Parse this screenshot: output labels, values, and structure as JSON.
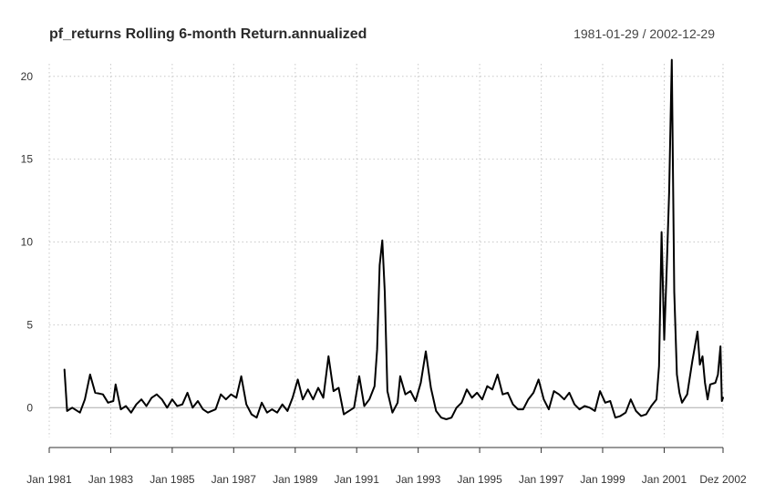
{
  "chart_data": {
    "type": "line",
    "title": "pf_returns Rolling 6-month Return.annualized",
    "date_range_label": "1981-01-29 / 2002-12-29",
    "xlabel": "",
    "ylabel": "",
    "x_range": [
      "1981-01-29",
      "2002-12-29"
    ],
    "ylim": [
      -1.8,
      21.2
    ],
    "y_ticks": [
      0,
      5,
      10,
      15,
      20
    ],
    "y_tick_labels": [
      "0",
      "5",
      "10",
      "15",
      "20"
    ],
    "x_ticks": [
      {
        "date": "1981-01-29",
        "label": "Jan 1981"
      },
      {
        "date": "1983-01-29",
        "label": "Jan 1983"
      },
      {
        "date": "1985-01-29",
        "label": "Jan 1985"
      },
      {
        "date": "1987-01-29",
        "label": "Jan 1987"
      },
      {
        "date": "1989-01-29",
        "label": "Jan 1989"
      },
      {
        "date": "1991-01-29",
        "label": "Jan 1991"
      },
      {
        "date": "1993-01-29",
        "label": "Jan 1993"
      },
      {
        "date": "1995-01-29",
        "label": "Jan 1995"
      },
      {
        "date": "1997-01-29",
        "label": "Jan 1997"
      },
      {
        "date": "1999-01-29",
        "label": "Jan 1999"
      },
      {
        "date": "2001-01-29",
        "label": "Jan 2001"
      },
      {
        "date": "2002-12-29",
        "label": "Dez 2002"
      }
    ],
    "grid": true,
    "colors": {
      "line": "#000000",
      "zero_line": "#aaaaaa",
      "grid": "#c8c8c8",
      "axis": "#333333"
    },
    "series": [
      {
        "values": [
          [
            "1981-07-29",
            2.3
          ],
          [
            "1981-08-29",
            -0.2
          ],
          [
            "1981-10-29",
            0.0
          ],
          [
            "1982-01-29",
            -0.3
          ],
          [
            "1982-03-29",
            0.5
          ],
          [
            "1982-05-29",
            2.0
          ],
          [
            "1982-07-29",
            0.9
          ],
          [
            "1982-10-29",
            0.8
          ],
          [
            "1982-12-29",
            0.3
          ],
          [
            "1983-02-29",
            0.4
          ],
          [
            "1983-03-29",
            1.4
          ],
          [
            "1983-05-29",
            -0.1
          ],
          [
            "1983-07-29",
            0.1
          ],
          [
            "1983-09-29",
            -0.3
          ],
          [
            "1983-11-29",
            0.2
          ],
          [
            "1984-01-29",
            0.5
          ],
          [
            "1984-03-29",
            0.1
          ],
          [
            "1984-05-29",
            0.6
          ],
          [
            "1984-07-29",
            0.8
          ],
          [
            "1984-09-29",
            0.5
          ],
          [
            "1984-11-29",
            0.0
          ],
          [
            "1985-01-29",
            0.5
          ],
          [
            "1985-03-29",
            0.1
          ],
          [
            "1985-05-29",
            0.2
          ],
          [
            "1985-07-29",
            0.9
          ],
          [
            "1985-09-29",
            0.0
          ],
          [
            "1985-11-29",
            0.4
          ],
          [
            "1986-01-29",
            -0.1
          ],
          [
            "1986-03-29",
            -0.3
          ],
          [
            "1986-06-29",
            -0.1
          ],
          [
            "1986-08-29",
            0.8
          ],
          [
            "1986-10-29",
            0.5
          ],
          [
            "1986-12-29",
            0.8
          ],
          [
            "1987-02-29",
            0.6
          ],
          [
            "1987-04-29",
            1.9
          ],
          [
            "1987-06-29",
            0.2
          ],
          [
            "1987-08-29",
            -0.4
          ],
          [
            "1987-10-29",
            -0.6
          ],
          [
            "1987-12-29",
            0.3
          ],
          [
            "1988-02-29",
            -0.3
          ],
          [
            "1988-04-29",
            -0.1
          ],
          [
            "1988-06-29",
            -0.3
          ],
          [
            "1988-08-29",
            0.2
          ],
          [
            "1988-10-29",
            -0.2
          ],
          [
            "1988-12-29",
            0.6
          ],
          [
            "1989-02-29",
            1.7
          ],
          [
            "1989-04-29",
            0.5
          ],
          [
            "1989-06-29",
            1.1
          ],
          [
            "1989-08-29",
            0.5
          ],
          [
            "1989-10-29",
            1.2
          ],
          [
            "1989-12-29",
            0.6
          ],
          [
            "1990-02-29",
            3.1
          ],
          [
            "1990-04-29",
            1.0
          ],
          [
            "1990-06-29",
            1.2
          ],
          [
            "1990-08-29",
            -0.4
          ],
          [
            "1990-10-29",
            -0.2
          ],
          [
            "1990-12-29",
            0.0
          ],
          [
            "1991-02-29",
            1.9
          ],
          [
            "1991-04-29",
            0.1
          ],
          [
            "1991-06-29",
            0.5
          ],
          [
            "1991-08-29",
            1.3
          ],
          [
            "1991-09-29",
            3.5
          ],
          [
            "1991-10-29",
            8.6
          ],
          [
            "1991-11-29",
            10.1
          ],
          [
            "1991-12-29",
            7.0
          ],
          [
            "1992-01-29",
            1.0
          ],
          [
            "1992-03-29",
            -0.3
          ],
          [
            "1992-05-29",
            0.3
          ],
          [
            "1992-06-29",
            1.9
          ],
          [
            "1992-08-29",
            0.8
          ],
          [
            "1992-10-29",
            1.0
          ],
          [
            "1992-12-29",
            0.4
          ],
          [
            "1993-02-29",
            1.5
          ],
          [
            "1993-04-29",
            3.4
          ],
          [
            "1993-06-29",
            1.2
          ],
          [
            "1993-08-29",
            -0.2
          ],
          [
            "1993-10-29",
            -0.6
          ],
          [
            "1993-12-29",
            -0.7
          ],
          [
            "1994-02-29",
            -0.6
          ],
          [
            "1994-04-29",
            0.0
          ],
          [
            "1994-06-29",
            0.3
          ],
          [
            "1994-08-29",
            1.1
          ],
          [
            "1994-10-29",
            0.6
          ],
          [
            "1994-12-29",
            0.9
          ],
          [
            "1995-02-29",
            0.5
          ],
          [
            "1995-04-29",
            1.3
          ],
          [
            "1995-06-29",
            1.1
          ],
          [
            "1995-08-29",
            2.0
          ],
          [
            "1995-10-29",
            0.8
          ],
          [
            "1995-12-29",
            0.9
          ],
          [
            "1996-02-29",
            0.2
          ],
          [
            "1996-04-29",
            -0.1
          ],
          [
            "1996-06-29",
            -0.1
          ],
          [
            "1996-08-29",
            0.5
          ],
          [
            "1996-10-29",
            0.9
          ],
          [
            "1996-12-29",
            1.7
          ],
          [
            "1997-02-29",
            0.5
          ],
          [
            "1997-04-29",
            -0.1
          ],
          [
            "1997-06-29",
            1.0
          ],
          [
            "1997-08-29",
            0.8
          ],
          [
            "1997-10-29",
            0.5
          ],
          [
            "1997-12-29",
            0.9
          ],
          [
            "1998-02-29",
            0.2
          ],
          [
            "1998-04-29",
            -0.1
          ],
          [
            "1998-06-29",
            0.1
          ],
          [
            "1998-08-29",
            0.0
          ],
          [
            "1998-10-29",
            -0.2
          ],
          [
            "1998-12-29",
            1.0
          ],
          [
            "1999-02-29",
            0.3
          ],
          [
            "1999-04-29",
            0.4
          ],
          [
            "1999-06-29",
            -0.6
          ],
          [
            "1999-08-29",
            -0.5
          ],
          [
            "1999-10-29",
            -0.3
          ],
          [
            "1999-12-29",
            0.5
          ],
          [
            "2000-02-29",
            -0.2
          ],
          [
            "2000-04-29",
            -0.5
          ],
          [
            "2000-06-29",
            -0.4
          ],
          [
            "2000-08-29",
            0.1
          ],
          [
            "2000-10-29",
            0.5
          ],
          [
            "2000-11-29",
            2.5
          ],
          [
            "2000-12-29",
            10.6
          ],
          [
            "2001-01-29",
            4.1
          ],
          [
            "2001-02-29",
            8.5
          ],
          [
            "2001-03-29",
            13.0
          ],
          [
            "2001-04-29",
            21.0
          ],
          [
            "2001-05-29",
            7.0
          ],
          [
            "2001-06-29",
            2.0
          ],
          [
            "2001-07-29",
            0.9
          ],
          [
            "2001-08-29",
            0.3
          ],
          [
            "2001-10-29",
            0.8
          ],
          [
            "2001-12-29",
            2.8
          ],
          [
            "2002-02-29",
            4.6
          ],
          [
            "2002-03-29",
            2.6
          ],
          [
            "2002-04-29",
            3.1
          ],
          [
            "2002-05-29",
            1.5
          ],
          [
            "2002-06-29",
            0.5
          ],
          [
            "2002-07-29",
            1.4
          ],
          [
            "2002-09-29",
            1.5
          ],
          [
            "2002-10-29",
            2.0
          ],
          [
            "2002-11-29",
            3.7
          ],
          [
            "2002-12-15",
            0.4
          ],
          [
            "2002-12-29",
            0.6
          ]
        ]
      }
    ]
  }
}
